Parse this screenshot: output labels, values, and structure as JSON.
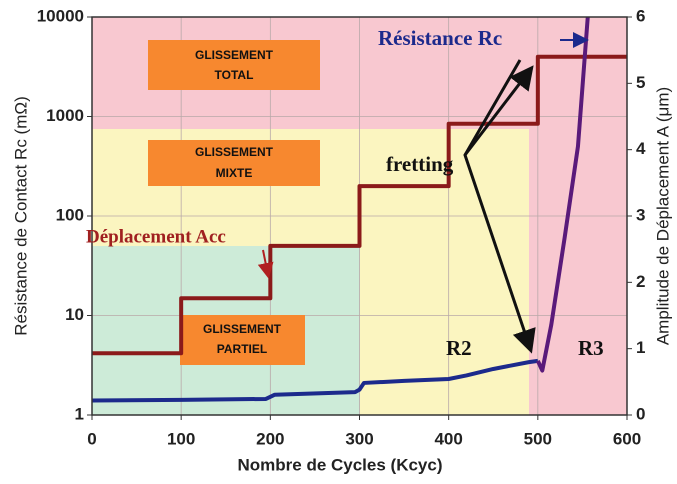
{
  "chart_data": {
    "type": "line",
    "xlabel": "Nombre de Cycles (Kcyc)",
    "ylabel": "Résistance de Contact Rc (mΩ)",
    "y2label": "Amplitude de Déplacement A (μm)",
    "xlim": [
      0,
      600
    ],
    "xticks": [
      0,
      100,
      200,
      300,
      400,
      500,
      600
    ],
    "ylim": [
      1,
      10000
    ],
    "yticks": [
      1,
      10,
      100,
      1000,
      10000
    ],
    "yscale": "log",
    "y2lim": [
      0,
      6
    ],
    "y2ticks": [
      0,
      1,
      2,
      3,
      4,
      5,
      6
    ],
    "grid": true,
    "series": [
      {
        "color": "#8b1a1a",
        "axis": "y2",
        "x": [
          0,
          100,
          100,
          200,
          200,
          300,
          300,
          400,
          400,
          500,
          500,
          600
        ],
        "values": [
          0.93,
          0.93,
          1.76,
          1.76,
          2.55,
          2.55,
          3.45,
          3.45,
          4.39,
          4.39,
          5.4,
          5.4
        ]
      },
      {
        "color": "#1c2a8c",
        "x": [
          0,
          100,
          195,
          205,
          295,
          300,
          305,
          350,
          400,
          420,
          450,
          490,
          500
        ],
        "values": [
          1.4,
          1.42,
          1.45,
          1.6,
          1.7,
          1.8,
          2.1,
          2.2,
          2.3,
          2.5,
          2.9,
          3.4,
          3.5
        ]
      },
      {
        "color": "#5a1a7a",
        "x": [
          500,
          505,
          515,
          530,
          545,
          556
        ],
        "values": [
          3.5,
          2.8,
          8,
          60,
          500,
          10000
        ]
      }
    ],
    "annotations": {
      "total": [
        "GLISSEMENT",
        "TOTAL"
      ],
      "mixte": [
        "GLISSEMENT",
        "MIXTE"
      ],
      "partiel": [
        "GLISSEMENT",
        "PARTIEL"
      ],
      "fretting": "fretting",
      "resistance": "Résistance Rc",
      "deplacement": "Déplacement Acc",
      "r2": "R2",
      "r3": "R3"
    }
  }
}
